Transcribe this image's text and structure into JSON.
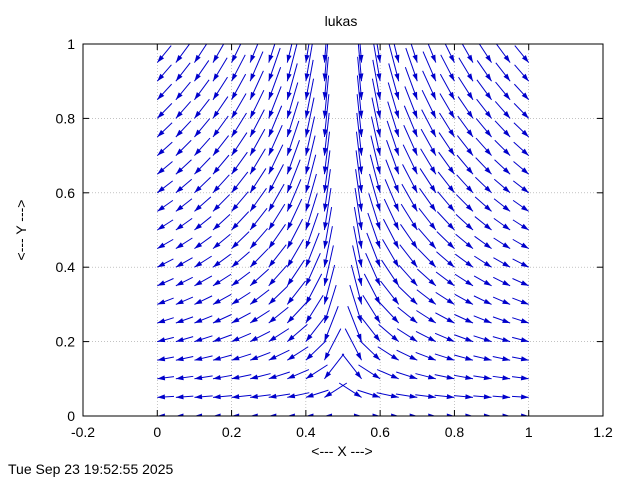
{
  "chart_data": {
    "type": "vector-field",
    "title": "lukas",
    "xlabel": "<--- X --->",
    "ylabel": "<--- Y --->",
    "xlim": [
      -0.2,
      1.2
    ],
    "ylim": [
      0,
      1
    ],
    "x_ticks": [
      "-0.2",
      "0",
      "0.2",
      "0.4",
      "0.6",
      "0.8",
      "1",
      "1.2"
    ],
    "y_ticks": [
      "0",
      "0.2",
      "0.4",
      "0.6",
      "0.8",
      "1"
    ],
    "x_tick_values": [
      -0.2,
      0,
      0.2,
      0.4,
      0.6,
      0.8,
      1,
      1.2
    ],
    "y_tick_values": [
      0,
      0.2,
      0.4,
      0.6,
      0.8,
      1
    ],
    "grid": true,
    "grid_x": [
      0,
      0.2,
      0.4,
      0.6,
      0.8,
      1
    ],
    "grid_y": [
      0.2,
      0.4,
      0.6,
      0.8
    ],
    "vector_color": "#0000cc",
    "grid_x_range": [
      0,
      1
    ],
    "grid_y_range": [
      0,
      1
    ],
    "grid_x_count": 21,
    "grid_y_count": 21
  },
  "timestamp": "Tue Sep 23 19:52:55 2025"
}
